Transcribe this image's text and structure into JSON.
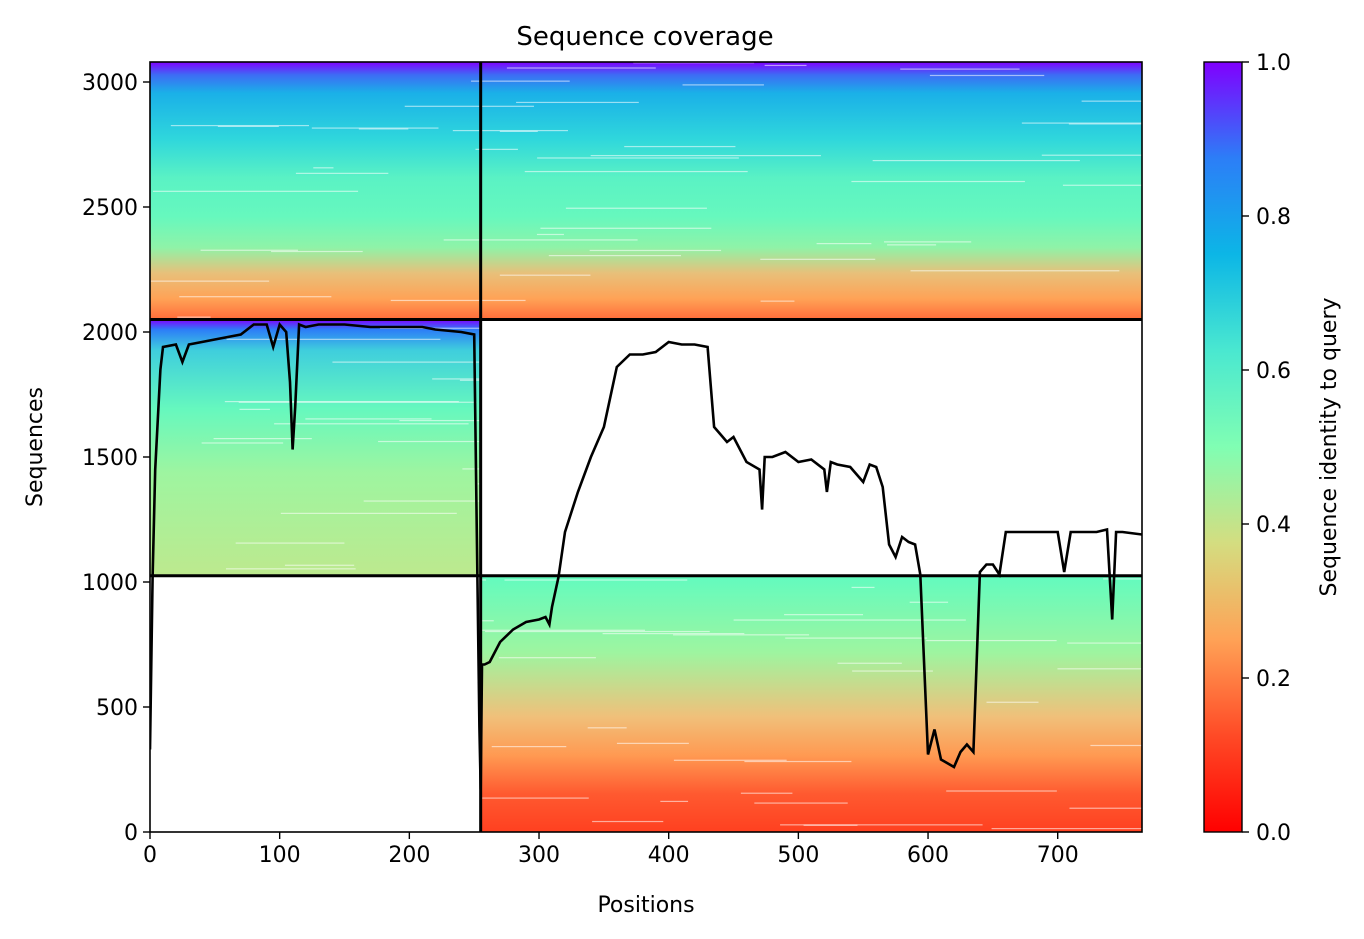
{
  "chart_data": {
    "type": "heatmap",
    "title": "Sequence coverage",
    "xlabel": "Positions",
    "ylabel": "Sequences",
    "xlim": [
      0,
      765
    ],
    "ylim": [
      0,
      3080
    ],
    "xticks": [
      0,
      100,
      200,
      300,
      400,
      500,
      600,
      700
    ],
    "yticks": [
      0,
      500,
      1000,
      1500,
      2000,
      2500,
      3000
    ],
    "colorbar": {
      "label": "Sequence identity to query",
      "colormap": "rainbow_r",
      "ticks": [
        0.0,
        0.2,
        0.4,
        0.6,
        0.8,
        1.0
      ],
      "tick_labels": [
        "0.0",
        "0.2",
        "0.4",
        "0.6",
        "0.8",
        "1.0"
      ]
    },
    "chain_boundaries": {
      "positions": [
        255
      ],
      "sequence_splits": [
        1025,
        2050
      ]
    },
    "blocks": [
      {
        "name": "chain-1-paired",
        "x": [
          0,
          255
        ],
        "y": [
          2050,
          3080
        ],
        "identity": [
          0.15,
          1.0
        ]
      },
      {
        "name": "chain-2-paired",
        "x": [
          255,
          765
        ],
        "y": [
          2050,
          3080
        ],
        "identity": [
          0.15,
          1.0
        ]
      },
      {
        "name": "chain-1-unpaired",
        "x": [
          0,
          255
        ],
        "y": [
          1025,
          2050
        ],
        "identity": [
          0.4,
          1.0
        ]
      },
      {
        "name": "chain-2-unpaired",
        "x": [
          255,
          765
        ],
        "y": [
          0,
          1025
        ],
        "identity": [
          0.08,
          0.55
        ]
      }
    ],
    "coverage": {
      "x": [
        0,
        2,
        4,
        6,
        8,
        10,
        20,
        25,
        30,
        40,
        50,
        60,
        70,
        80,
        90,
        95,
        100,
        105,
        108,
        110,
        112,
        115,
        120,
        130,
        150,
        170,
        190,
        200,
        210,
        220,
        240,
        250,
        252,
        254,
        255,
        256,
        258,
        262,
        270,
        280,
        290,
        300,
        305,
        308,
        310,
        315,
        320,
        330,
        340,
        350,
        360,
        370,
        380,
        390,
        400,
        410,
        420,
        430,
        435,
        440,
        445,
        450,
        460,
        470,
        472,
        474,
        480,
        490,
        500,
        510,
        520,
        522,
        525,
        530,
        540,
        550,
        555,
        560,
        565,
        570,
        575,
        580,
        585,
        590,
        594,
        600,
        605,
        610,
        620,
        625,
        630,
        635,
        640,
        645,
        650,
        655,
        660,
        670,
        680,
        700,
        705,
        710,
        720,
        730,
        738,
        742,
        745,
        750,
        765
      ],
      "y": [
        330,
        1020,
        1450,
        1650,
        1850,
        1940,
        1950,
        1880,
        1950,
        1960,
        1970,
        1980,
        1990,
        2030,
        2030,
        1940,
        2030,
        2000,
        1800,
        1530,
        1700,
        2030,
        2020,
        2030,
        2030,
        2020,
        2020,
        2020,
        2020,
        2010,
        2000,
        1990,
        1200,
        420,
        170,
        670,
        670,
        680,
        760,
        810,
        840,
        850,
        860,
        830,
        900,
        1020,
        1200,
        1360,
        1500,
        1620,
        1860,
        1910,
        1910,
        1920,
        1960,
        1950,
        1950,
        1940,
        1620,
        1590,
        1560,
        1580,
        1480,
        1450,
        1290,
        1500,
        1500,
        1520,
        1480,
        1490,
        1450,
        1360,
        1480,
        1470,
        1460,
        1400,
        1470,
        1460,
        1380,
        1150,
        1100,
        1180,
        1160,
        1150,
        1030,
        310,
        410,
        290,
        260,
        320,
        350,
        320,
        1040,
        1070,
        1070,
        1030,
        1200,
        1200,
        1200,
        1200,
        1040,
        1200,
        1200,
        1200,
        1210,
        850,
        1200,
        1200,
        1190
      ]
    }
  }
}
